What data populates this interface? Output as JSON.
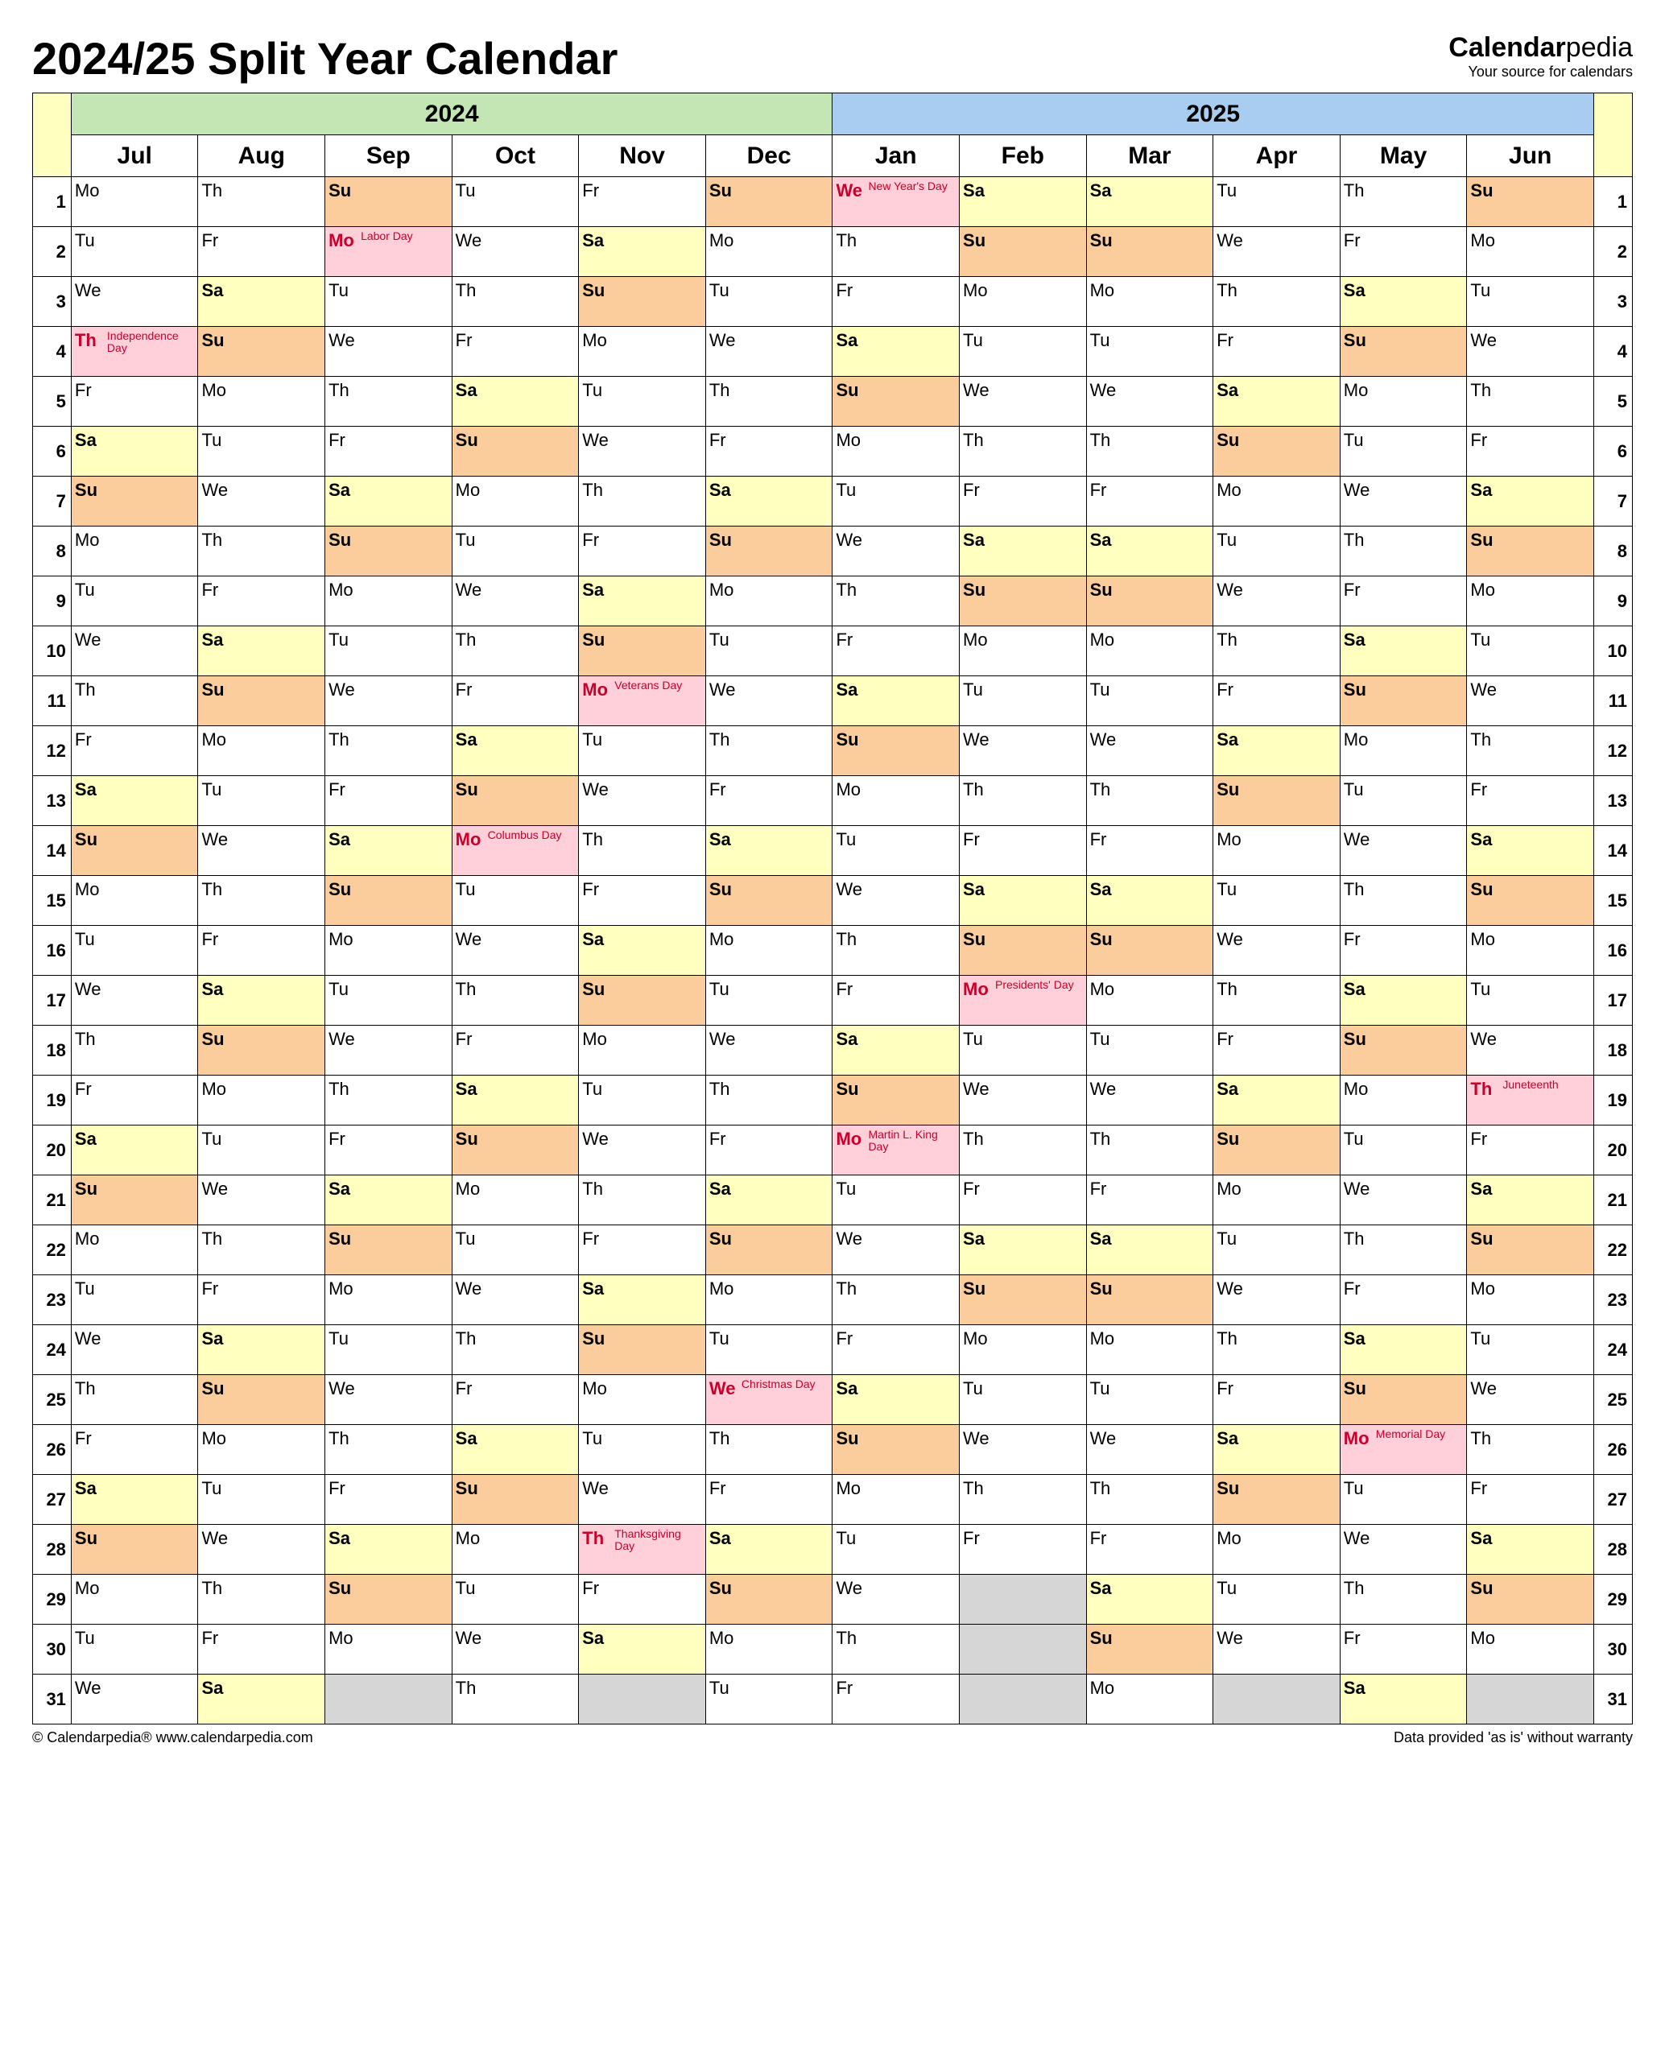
{
  "title": "2024/25 Split Year Calendar",
  "brand": {
    "name1": "Calendar",
    "name2": "pedia",
    "tagline": "Your source for calendars"
  },
  "footer": {
    "left": "© Calendarpedia®    www.calendarpedia.com",
    "right": "Data provided 'as is' without warranty"
  },
  "colors": {
    "year1_bg": "#c4e6b4",
    "year2_bg": "#a9cdf0",
    "corner_bg": "#ffffbf",
    "sat_bg": "#ffffbf",
    "sun_bg": "#fccd9c",
    "holiday_bg": "#ffcfda",
    "holiday_text": "#c9002b",
    "empty_bg": "#d6d6d6",
    "border": "#000000",
    "title_fontsize": 56,
    "year_fontsize": 30,
    "month_fontsize": 30,
    "daynum_fontsize": 22,
    "abbr_fontsize": 22,
    "holiday_fontsize": 14
  },
  "years": [
    {
      "label": "2024",
      "span": 6
    },
    {
      "label": "2025",
      "span": 6
    }
  ],
  "months": [
    "Jul",
    "Aug",
    "Sep",
    "Oct",
    "Nov",
    "Dec",
    "Jan",
    "Feb",
    "Mar",
    "Apr",
    "May",
    "Jun"
  ],
  "month_lengths": [
    31,
    31,
    30,
    31,
    30,
    31,
    31,
    28,
    31,
    30,
    31,
    30
  ],
  "month_start_dow": [
    0,
    3,
    6,
    1,
    4,
    6,
    2,
    5,
    5,
    1,
    3,
    6
  ],
  "dow_abbr": [
    "Mo",
    "Tu",
    "We",
    "Th",
    "Fr",
    "Sa",
    "Su"
  ],
  "holidays": {
    "Jul": {
      "4": "Independence Day"
    },
    "Sep": {
      "2": "Labor Day"
    },
    "Oct": {
      "14": "Columbus Day"
    },
    "Nov": {
      "11": "Veterans Day",
      "28": "Thanksgiving Day"
    },
    "Dec": {
      "25": "Christmas Day"
    },
    "Jan": {
      "1": "New Year's Day",
      "20": "Martin L. King Day"
    },
    "Feb": {
      "17": "Presidents' Day"
    },
    "May": {
      "26": "Memorial Day"
    },
    "Jun": {
      "19": "Juneteenth"
    }
  }
}
